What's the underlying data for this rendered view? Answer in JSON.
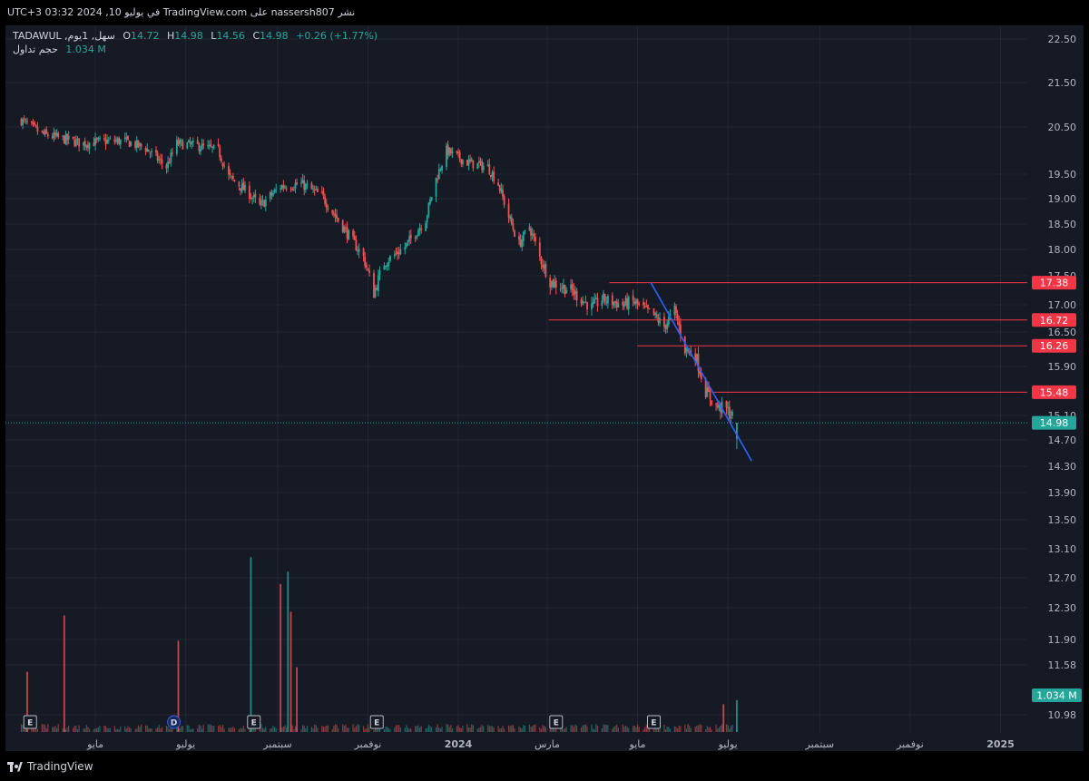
{
  "header": {
    "published_text": "نشر nassersh807 على TradingView.com في يوليو 10, 2024 03:32 UTC+3"
  },
  "legend": {
    "symbol": "سهل, 1يوم, TADAWUL",
    "open_label": "O",
    "open": "14.72",
    "high_label": "H",
    "high": "14.98",
    "low_label": "L",
    "low": "14.56",
    "close_label": "C",
    "close": "14.98",
    "change": "+0.26 (+1.77%)",
    "volume_label": "حجم تداول",
    "volume_value": "1.034 M"
  },
  "footer": {
    "brand": "TradingView"
  },
  "colors": {
    "background": "#161a25",
    "grid": "#232733",
    "up": "#26a69a",
    "down": "#ef5350",
    "hline": "#f23645",
    "trendline": "#2962ff",
    "text": "#b2b5be"
  },
  "chart_data": {
    "type": "candlestick",
    "symbol": "سهل, 1يوم, TADAWUL",
    "y_axis": {
      "ticks": [
        "22.50",
        "21.50",
        "20.50",
        "19.50",
        "19.00",
        "18.50",
        "18.00",
        "17.50",
        "17.00",
        "16.50",
        "15.90",
        "15.10",
        "14.70",
        "14.30",
        "13.90",
        "13.50",
        "13.10",
        "12.70",
        "12.30",
        "11.90",
        "11.58",
        "10.98"
      ],
      "tick_values": [
        22.5,
        21.5,
        20.5,
        19.5,
        19.0,
        18.5,
        18.0,
        17.5,
        17.0,
        16.5,
        15.9,
        15.1,
        14.7,
        14.3,
        13.9,
        13.5,
        13.1,
        12.7,
        12.3,
        11.9,
        11.58,
        10.98
      ]
    },
    "x_axis": {
      "ticks": [
        "مايو",
        "يوليو",
        "سبتمبر",
        "نوفمبر",
        "2024",
        "مارس",
        "مايو",
        "يوليو",
        "سبتمبر",
        "نوفمبر",
        "2025"
      ],
      "tick_dates": [
        "2023-05-01",
        "2023-07-01",
        "2023-09-01",
        "2023-11-01",
        "2024-01-01",
        "2024-03-01",
        "2024-05-01",
        "2024-07-01",
        "2024-09-01",
        "2024-11-01",
        "2025-01-01"
      ]
    },
    "price_series": [
      {
        "date": "2023-03-12",
        "close": 20.65
      },
      {
        "date": "2023-03-26",
        "close": 20.35
      },
      {
        "date": "2023-04-09",
        "close": 20.25
      },
      {
        "date": "2023-04-23",
        "close": 20.15
      },
      {
        "date": "2023-05-07",
        "close": 20.2
      },
      {
        "date": "2023-05-21",
        "close": 20.2
      },
      {
        "date": "2023-06-04",
        "close": 20.05
      },
      {
        "date": "2023-06-18",
        "close": 19.65
      },
      {
        "date": "2023-06-25",
        "close": 20.15
      },
      {
        "date": "2023-07-09",
        "close": 20.1
      },
      {
        "date": "2023-07-23",
        "close": 20.0
      },
      {
        "date": "2023-07-30",
        "close": 19.45
      },
      {
        "date": "2023-08-13",
        "close": 19.1
      },
      {
        "date": "2023-08-20",
        "close": 18.85
      },
      {
        "date": "2023-09-03",
        "close": 19.25
      },
      {
        "date": "2023-09-17",
        "close": 19.3
      },
      {
        "date": "2023-10-01",
        "close": 19.05
      },
      {
        "date": "2023-10-15",
        "close": 18.45
      },
      {
        "date": "2023-10-29",
        "close": 17.85
      },
      {
        "date": "2023-11-05",
        "close": 17.2
      },
      {
        "date": "2023-11-12",
        "close": 17.75
      },
      {
        "date": "2023-11-26",
        "close": 18.05
      },
      {
        "date": "2023-12-10",
        "close": 18.6
      },
      {
        "date": "2023-12-17",
        "close": 19.4
      },
      {
        "date": "2023-12-24",
        "close": 20.0
      },
      {
        "date": "2024-01-07",
        "close": 19.75
      },
      {
        "date": "2024-01-21",
        "close": 19.65
      },
      {
        "date": "2024-01-28",
        "close": 19.3
      },
      {
        "date": "2024-02-04",
        "close": 18.65
      },
      {
        "date": "2024-02-11",
        "close": 18.1
      },
      {
        "date": "2024-02-18",
        "close": 18.45
      },
      {
        "date": "2024-02-25",
        "close": 17.85
      },
      {
        "date": "2024-03-03",
        "close": 17.4
      },
      {
        "date": "2024-03-17",
        "close": 17.25
      },
      {
        "date": "2024-03-31",
        "close": 16.95
      },
      {
        "date": "2024-04-07",
        "close": 17.1
      },
      {
        "date": "2024-04-21",
        "close": 17.0
      },
      {
        "date": "2024-04-28",
        "close": 17.05
      },
      {
        "date": "2024-05-12",
        "close": 16.8
      },
      {
        "date": "2024-05-19",
        "close": 16.6
      },
      {
        "date": "2024-05-26",
        "close": 16.9
      },
      {
        "date": "2024-06-02",
        "close": 16.2
      },
      {
        "date": "2024-06-09",
        "close": 16.1
      },
      {
        "date": "2024-06-16",
        "close": 15.5
      },
      {
        "date": "2024-06-23",
        "close": 15.25
      },
      {
        "date": "2024-06-30",
        "close": 15.2
      },
      {
        "date": "2024-07-07",
        "close": 14.98
      }
    ],
    "volume_series": {
      "units": "M",
      "last": 1.034,
      "spikes": [
        {
          "date": "2023-03-16",
          "value": 1.95
        },
        {
          "date": "2023-04-10",
          "value": 3.78
        },
        {
          "date": "2023-06-26",
          "value": 2.96
        },
        {
          "date": "2023-08-14",
          "value": 5.67
        },
        {
          "date": "2023-09-03",
          "value": 4.8
        },
        {
          "date": "2023-09-08",
          "value": 5.2
        },
        {
          "date": "2023-09-10",
          "value": 3.9
        },
        {
          "date": "2023-09-14",
          "value": 2.1
        },
        {
          "date": "2024-06-28",
          "value": 0.9
        },
        {
          "date": "2024-07-07",
          "value": 1.034
        }
      ]
    },
    "horizontal_lines": [
      {
        "price": 17.38,
        "label": "17.38",
        "start_date": "2024-04-12"
      },
      {
        "price": 16.72,
        "label": "16.72",
        "start_date": "2024-03-02"
      },
      {
        "price": 16.26,
        "label": "16.26",
        "start_date": "2024-05-01"
      },
      {
        "price": 15.48,
        "label": "15.48",
        "start_date": "2024-06-21"
      }
    ],
    "trendline": {
      "start_date": "2024-05-10",
      "start_price": 17.38,
      "end_date": "2024-07-17",
      "end_price": 14.38
    },
    "last_price": {
      "price": 14.98,
      "label": "14.98"
    },
    "volume_tag": {
      "label": "1.034 M"
    },
    "events": [
      {
        "date": "2023-03-18",
        "label": "E"
      },
      {
        "date": "2023-06-23",
        "label": "D"
      },
      {
        "date": "2023-08-16",
        "label": "E"
      },
      {
        "date": "2023-11-07",
        "label": "E"
      },
      {
        "date": "2024-03-07",
        "label": "E"
      },
      {
        "date": "2024-05-12",
        "label": "E"
      }
    ]
  }
}
